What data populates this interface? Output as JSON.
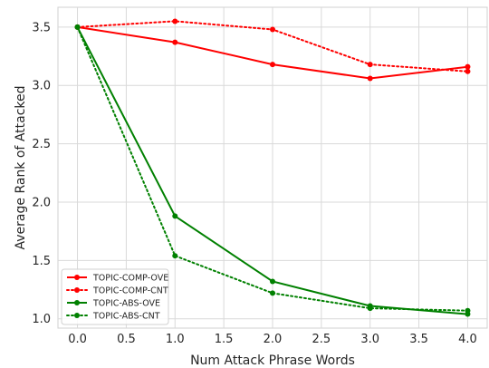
{
  "chart_data": {
    "type": "line",
    "title": "",
    "xlabel": "Num Attack Phrase Words",
    "ylabel": "Average Rank of Attacked",
    "x": [
      0,
      1,
      2,
      3,
      4
    ],
    "xlim": [
      -0.2,
      4.2
    ],
    "ylim": [
      0.92,
      3.67
    ],
    "xticks": [
      "0.0",
      "0.5",
      "1.0",
      "1.5",
      "2.0",
      "2.5",
      "3.0",
      "3.5",
      "4.0"
    ],
    "yticks": [
      "1.0",
      "1.5",
      "2.0",
      "2.5",
      "3.0",
      "3.5"
    ],
    "grid": true,
    "legend_position": "lower-left",
    "series": [
      {
        "name": "TOPIC-COMP-OVE",
        "color": "#ff0000",
        "style": "solid",
        "values": [
          3.5,
          3.37,
          3.18,
          3.06,
          3.16
        ]
      },
      {
        "name": "TOPIC-COMP-CNT",
        "color": "#ff0000",
        "style": "dotted",
        "values": [
          3.5,
          3.55,
          3.48,
          3.18,
          3.12
        ]
      },
      {
        "name": "TOPIC-ABS-OVE",
        "color": "#008000",
        "style": "solid",
        "values": [
          3.5,
          1.88,
          1.32,
          1.11,
          1.04
        ]
      },
      {
        "name": "TOPIC-ABS-CNT",
        "color": "#008000",
        "style": "dotted",
        "values": [
          3.5,
          1.54,
          1.22,
          1.09,
          1.07
        ]
      }
    ]
  }
}
